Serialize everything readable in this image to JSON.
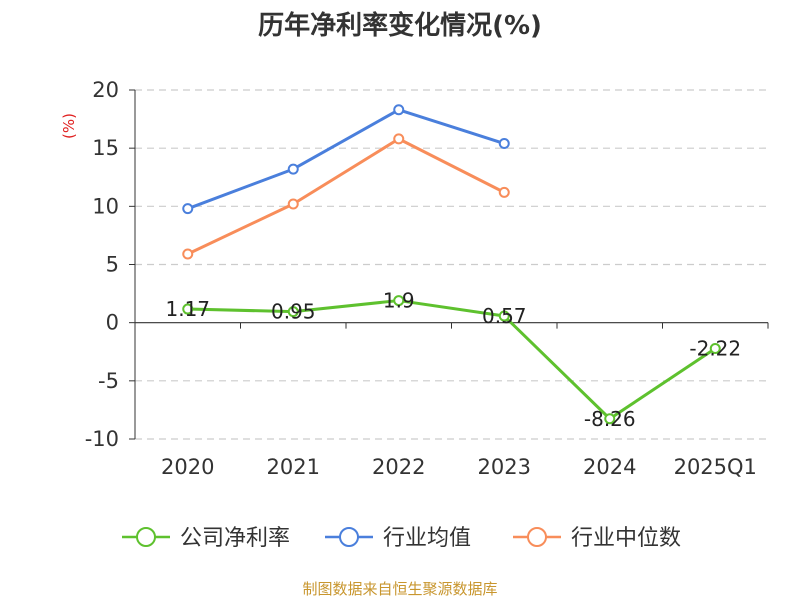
{
  "chart_data": {
    "type": "line",
    "title": "历年净利率变化情况(%)",
    "ylabel": "(%)",
    "categories": [
      "2020",
      "2021",
      "2022",
      "2023",
      "2024",
      "2025Q1"
    ],
    "ylim": [
      -10,
      20
    ],
    "yticks": [
      -10,
      -5,
      0,
      5,
      10,
      15,
      20
    ],
    "ytick_labels": [
      "-10",
      "-5",
      "0",
      "5",
      "10",
      "15",
      "20"
    ],
    "grid": true,
    "legend_position": "bottom",
    "series": [
      {
        "name": "公司净利率",
        "color": "#5ec12e",
        "values": [
          1.17,
          0.95,
          1.9,
          0.57,
          -8.26,
          -2.22
        ],
        "labels": [
          "1.17",
          "0.95",
          "1.9",
          "0.57",
          "-8.26",
          "-2.22"
        ]
      },
      {
        "name": "行业均值",
        "color": "#4a7fdc",
        "values": [
          9.8,
          13.2,
          18.3,
          15.4,
          null,
          null
        ]
      },
      {
        "name": "行业中位数",
        "color": "#f88d5a",
        "values": [
          5.9,
          10.2,
          15.8,
          11.2,
          null,
          null
        ]
      }
    ]
  },
  "source": {
    "text": "制图数据来自恒生聚源数据库",
    "color": "#c8962e"
  },
  "ylabel_color": "#e02020"
}
